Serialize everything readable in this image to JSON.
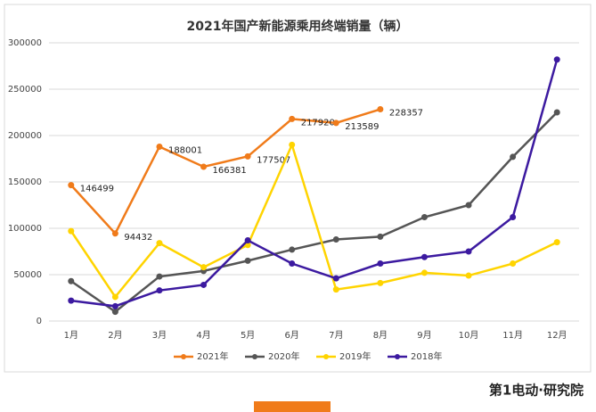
{
  "chart_data": {
    "type": "line",
    "title": "2021年国产新能源乘用终端销量（辆）",
    "categories": [
      "1月",
      "2月",
      "3月",
      "4月",
      "5月",
      "6月",
      "7月",
      "8月",
      "9月",
      "10月",
      "11月",
      "12月"
    ],
    "series": [
      {
        "name": "2021年",
        "color": "#f07b1a",
        "values": [
          146499,
          94432,
          188001,
          166381,
          177507,
          217920,
          213589,
          228357,
          null,
          null,
          null,
          null
        ],
        "data_labels": true
      },
      {
        "name": "2020年",
        "color": "#555555",
        "values": [
          43000,
          10000,
          48000,
          54000,
          65000,
          77000,
          88000,
          91000,
          112000,
          125000,
          177000,
          225000
        ]
      },
      {
        "name": "2019年",
        "color": "#ffd400",
        "values": [
          97000,
          26000,
          84000,
          58000,
          82000,
          190000,
          34000,
          41000,
          52000,
          49000,
          62000,
          85000
        ]
      },
      {
        "name": "2018年",
        "color": "#3c1aa0",
        "values": [
          22000,
          16000,
          33000,
          39000,
          87000,
          62000,
          46000,
          62000,
          69000,
          75000,
          112000,
          282000
        ]
      }
    ],
    "ylim": [
      0,
      300000
    ],
    "yticks": [
      0,
      50000,
      100000,
      150000,
      200000,
      250000,
      300000
    ],
    "grid": true,
    "legend": "bottom"
  },
  "footer": "第1电动·研究院"
}
